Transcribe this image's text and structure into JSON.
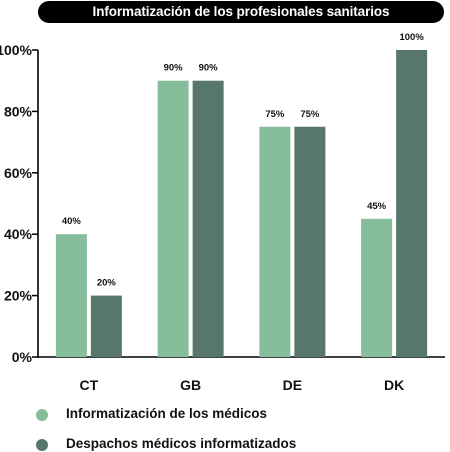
{
  "chart_data": {
    "type": "bar",
    "title": "Informatización de los profesionales sanitarios",
    "categories": [
      "CT",
      "GB",
      "DE",
      "DK"
    ],
    "series": [
      {
        "name": "Informatización de los médicos",
        "values": [
          40,
          90,
          75,
          45
        ],
        "labels": [
          "40%",
          "90%",
          "75%",
          "45%"
        ],
        "color": "#86bd9a"
      },
      {
        "name": "Despachos médicos informatizados",
        "values": [
          20,
          90,
          75,
          100
        ],
        "labels": [
          "20%",
          "90%",
          "75%",
          "100%"
        ],
        "color": "#56776a"
      }
    ],
    "ylim": [
      0,
      100
    ],
    "yticks": [
      0,
      20,
      40,
      60,
      80,
      100
    ],
    "ytick_labels": [
      "0%",
      "20%",
      "40%",
      "60%",
      "80%",
      "100%"
    ],
    "xlabel": "",
    "ylabel": "",
    "grid": false,
    "legend_position": "bottom-left"
  }
}
